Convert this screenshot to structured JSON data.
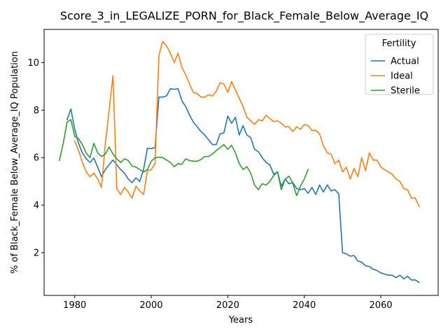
{
  "chart_data": {
    "type": "line",
    "title": "Score_3_in_LEGALIZE_PORN_for_Black_Female_Below_Average_IQ",
    "xlabel": "Years",
    "ylabel": "% of Black_Female Below_Average_IQ Population",
    "xlim": [
      1972,
      2075
    ],
    "ylim": [
      0.2,
      11.4
    ],
    "xticks": [
      1980,
      2000,
      2020,
      2040,
      2060
    ],
    "yticks": [
      2,
      4,
      6,
      8,
      10
    ],
    "grid": false,
    "legend": {
      "title": "Fertility",
      "position": "top-right"
    },
    "series": [
      {
        "name": "Actual",
        "color": "#1f77b4",
        "x": [
          1978,
          1979,
          1980,
          1981,
          1982,
          1983,
          1984,
          1985,
          1986,
          1987,
          1988,
          1989,
          1990,
          1991,
          1992,
          1993,
          1994,
          1995,
          1996,
          1997,
          1998,
          1999,
          2000,
          2001,
          2002,
          2003,
          2004,
          2005,
          2006,
          2007,
          2008,
          2009,
          2010,
          2011,
          2012,
          2013,
          2014,
          2015,
          2016,
          2017,
          2018,
          2019,
          2020,
          2021,
          2022,
          2023,
          2024,
          2025,
          2026,
          2027,
          2028,
          2029,
          2030,
          2031,
          2032,
          2033,
          2034,
          2035,
          2036,
          2037,
          2038,
          2039,
          2040,
          2041,
          2042,
          2043,
          2044,
          2045,
          2046,
          2047,
          2048,
          2049,
          2050,
          2051,
          2052,
          2053,
          2054,
          2055,
          2056,
          2057,
          2058,
          2059,
          2060,
          2061,
          2062,
          2063,
          2064,
          2065,
          2066,
          2067,
          2068,
          2069,
          2070
        ],
        "y": [
          7.6,
          8.05,
          7.2,
          6.6,
          6.2,
          5.95,
          5.8,
          5.98,
          5.6,
          5.2,
          5.5,
          5.7,
          5.9,
          5.7,
          5.5,
          5.35,
          5.1,
          4.95,
          5.15,
          5.0,
          5.5,
          6.4,
          6.38,
          6.42,
          8.55,
          8.55,
          8.6,
          8.9,
          8.88,
          8.9,
          8.4,
          8.15,
          7.8,
          7.5,
          7.3,
          7.1,
          6.95,
          6.75,
          6.55,
          6.55,
          7.0,
          7.05,
          7.75,
          7.45,
          7.7,
          6.95,
          7.35,
          6.95,
          6.85,
          6.35,
          6.25,
          6.0,
          5.8,
          5.7,
          5.3,
          5.4,
          4.8,
          5.1,
          4.9,
          4.95,
          4.7,
          4.65,
          4.7,
          4.5,
          4.75,
          4.45,
          4.85,
          4.55,
          4.85,
          4.6,
          4.65,
          4.48,
          2.0,
          1.95,
          1.85,
          1.88,
          1.65,
          1.6,
          1.45,
          1.42,
          1.3,
          1.25,
          1.15,
          1.1,
          1.05,
          1.05,
          0.95,
          1.05,
          0.9,
          1.0,
          0.85,
          0.85,
          0.75
        ]
      },
      {
        "name": "Ideal",
        "color": "#ff7f0e",
        "x": [
          1980,
          1981,
          1982,
          1983,
          1984,
          1985,
          1986,
          1987,
          1988,
          1989,
          1990,
          1991,
          1992,
          1993,
          1994,
          1995,
          1996,
          1997,
          1998,
          1999,
          2000,
          2001,
          2002,
          2003,
          2004,
          2005,
          2006,
          2007,
          2008,
          2009,
          2010,
          2011,
          2012,
          2013,
          2014,
          2015,
          2016,
          2017,
          2018,
          2019,
          2020,
          2021,
          2022,
          2023,
          2024,
          2025,
          2026,
          2027,
          2028,
          2029,
          2030,
          2031,
          2032,
          2033,
          2034,
          2035,
          2036,
          2037,
          2038,
          2039,
          2040,
          2041,
          2042,
          2043,
          2044,
          2045,
          2046,
          2047,
          2048,
          2049,
          2050,
          2051,
          2052,
          2053,
          2054,
          2055,
          2056,
          2057,
          2058,
          2059,
          2060,
          2061,
          2062,
          2063,
          2064,
          2065,
          2066,
          2067,
          2068,
          2069,
          2070
        ],
        "y": [
          6.7,
          6.3,
          5.8,
          5.4,
          5.2,
          5.35,
          5.1,
          4.75,
          6.6,
          8.0,
          9.45,
          4.7,
          4.45,
          4.75,
          4.55,
          4.3,
          4.8,
          4.6,
          4.45,
          5.45,
          5.5,
          5.75,
          10.3,
          10.9,
          10.7,
          10.4,
          10.0,
          10.4,
          9.8,
          9.5,
          9.1,
          8.75,
          8.7,
          8.55,
          8.55,
          8.65,
          8.6,
          8.8,
          9.15,
          9.1,
          8.75,
          9.2,
          8.85,
          8.5,
          8.15,
          7.7,
          7.55,
          7.4,
          7.6,
          7.55,
          7.78,
          7.65,
          7.52,
          7.55,
          7.45,
          7.3,
          7.3,
          7.1,
          7.3,
          7.2,
          7.4,
          7.35,
          7.15,
          7.15,
          7.0,
          6.5,
          6.2,
          6.15,
          5.75,
          5.9,
          5.4,
          5.6,
          5.1,
          5.55,
          5.2,
          6.0,
          5.45,
          6.2,
          5.9,
          5.9,
          5.6,
          5.5,
          5.4,
          5.3,
          5.1,
          5.0,
          4.7,
          4.65,
          4.3,
          4.3,
          3.95
        ]
      },
      {
        "name": "Sterile",
        "color": "#2ca02c",
        "x": [
          1976,
          1977,
          1978,
          1979,
          1980,
          1981,
          1982,
          1983,
          1984,
          1985,
          1986,
          1987,
          1988,
          1989,
          1990,
          1991,
          1992,
          1993,
          1994,
          1995,
          1996,
          1997,
          1998,
          1999,
          2000,
          2001,
          2002,
          2003,
          2004,
          2005,
          2006,
          2007,
          2008,
          2009,
          2010,
          2011,
          2012,
          2013,
          2014,
          2015,
          2016,
          2017,
          2018,
          2019,
          2020,
          2021,
          2022,
          2023,
          2024,
          2025,
          2026,
          2027,
          2028,
          2029,
          2030,
          2031,
          2032,
          2033,
          2034,
          2035,
          2036,
          2037,
          2038,
          2039,
          2040,
          2041
        ],
        "y": [
          5.88,
          6.6,
          7.5,
          7.6,
          6.9,
          6.8,
          6.55,
          6.2,
          6.0,
          6.6,
          6.2,
          6.05,
          6.15,
          6.45,
          6.15,
          5.95,
          5.8,
          5.95,
          5.88,
          5.65,
          5.6,
          5.5,
          5.4,
          5.5,
          5.85,
          6.0,
          6.02,
          6.0,
          5.9,
          5.8,
          5.62,
          5.75,
          5.72,
          5.95,
          5.88,
          5.85,
          5.85,
          5.92,
          6.05,
          6.05,
          6.15,
          6.3,
          6.42,
          6.55,
          6.35,
          6.52,
          6.2,
          5.75,
          5.5,
          5.62,
          5.35,
          4.85,
          4.65,
          4.9,
          4.85,
          5.0,
          5.25,
          5.4,
          4.65,
          5.1,
          5.22,
          4.92,
          4.4,
          4.8,
          5.1,
          5.5
        ]
      }
    ]
  }
}
